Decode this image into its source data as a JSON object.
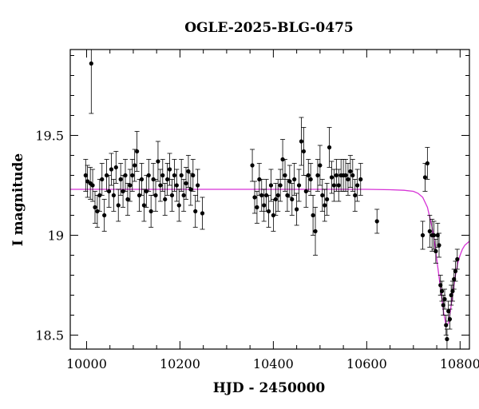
{
  "chart_data": {
    "type": "scatter",
    "title": "OGLE-2025-BLG-0475",
    "xlabel": "HJD - 2450000",
    "ylabel": "I magnitude",
    "xlim": [
      9965,
      10820
    ],
    "ylim": [
      19.93,
      18.43
    ],
    "y_inverted": true,
    "grid": false,
    "x_ticks": {
      "labeled": [
        10000,
        10200,
        10400,
        10600,
        10800
      ],
      "labels": [
        "10000",
        "10200",
        "10400",
        "10600",
        "10800"
      ]
    },
    "y_ticks": {
      "labeled": [
        18.5,
        19.0,
        19.5
      ],
      "labels": [
        "18.5",
        "19",
        "19.5"
      ]
    },
    "colors": {
      "points": "#000000",
      "model": "#d633d6"
    },
    "series": [
      {
        "style": "points with error bars",
        "x": [
          9998,
          10002,
          10008,
          10013,
          10018,
          10023,
          10028,
          10033,
          10038,
          10043,
          10048,
          10053,
          10058,
          10063,
          10068,
          10073,
          10078,
          10083,
          10088,
          10093,
          10098,
          10103,
          10108,
          10113,
          10118,
          10123,
          10128,
          10133,
          10138,
          10143,
          10148,
          10153,
          10158,
          10163,
          10168,
          10173,
          10178,
          10183,
          10188,
          10193,
          10198,
          10203,
          10208,
          10213,
          10218,
          10223,
          10228,
          10233,
          10238,
          10248,
          10010,
          10355,
          10360,
          10365,
          10370,
          10375,
          10380,
          10385,
          10390,
          10395,
          10400,
          10405,
          10410,
          10415,
          10420,
          10425,
          10430,
          10435,
          10440,
          10445,
          10450,
          10455,
          10460,
          10465,
          10470,
          10475,
          10480,
          10485,
          10490,
          10495,
          10500,
          10505,
          10510,
          10515,
          10520,
          10525,
          10530,
          10535,
          10540,
          10545,
          10550,
          10555,
          10560,
          10565,
          10570,
          10575,
          10580,
          10587,
          10622,
          10720,
          10725,
          10730,
          10735,
          10740,
          10744,
          10748,
          10752,
          10755,
          10758,
          10761,
          10764,
          10767,
          10770,
          10772,
          10775,
          10778,
          10781,
          10784,
          10787,
          10790,
          10794
        ],
        "y": [
          19.3,
          19.27,
          19.26,
          19.25,
          19.14,
          19.12,
          19.2,
          19.28,
          19.1,
          19.3,
          19.22,
          19.33,
          19.2,
          19.34,
          19.15,
          19.28,
          19.22,
          19.3,
          19.18,
          19.25,
          19.3,
          19.35,
          19.42,
          19.2,
          19.28,
          19.15,
          19.22,
          19.3,
          19.12,
          19.28,
          19.2,
          19.37,
          19.25,
          19.3,
          19.18,
          19.28,
          19.33,
          19.2,
          19.3,
          19.25,
          19.15,
          19.3,
          19.2,
          19.26,
          19.32,
          19.23,
          19.3,
          19.12,
          19.25,
          19.11,
          19.86,
          19.35,
          19.19,
          19.14,
          19.28,
          19.2,
          19.15,
          19.2,
          19.12,
          19.25,
          19.1,
          19.18,
          19.2,
          19.25,
          19.38,
          19.3,
          19.2,
          19.27,
          19.18,
          19.28,
          19.13,
          19.25,
          19.47,
          19.42,
          19.22,
          19.3,
          19.28,
          19.1,
          19.02,
          19.3,
          19.35,
          19.2,
          19.15,
          19.18,
          19.44,
          19.29,
          19.25,
          19.3,
          19.25,
          19.3,
          19.3,
          19.3,
          19.28,
          19.32,
          19.3,
          19.2,
          19.25,
          19.28,
          19.07,
          19.0,
          19.29,
          19.36,
          19.02,
          19.0,
          19.0,
          18.92,
          19.0,
          18.95,
          18.75,
          18.72,
          18.65,
          18.68,
          18.55,
          18.48,
          18.62,
          18.58,
          18.7,
          18.72,
          18.78,
          18.82,
          18.88
        ],
        "err": [
          0.08,
          0.08,
          0.08,
          0.08,
          0.08,
          0.08,
          0.08,
          0.08,
          0.08,
          0.08,
          0.08,
          0.08,
          0.08,
          0.08,
          0.08,
          0.08,
          0.08,
          0.08,
          0.08,
          0.08,
          0.08,
          0.08,
          0.1,
          0.08,
          0.08,
          0.08,
          0.08,
          0.08,
          0.08,
          0.08,
          0.08,
          0.1,
          0.08,
          0.08,
          0.08,
          0.08,
          0.08,
          0.08,
          0.08,
          0.08,
          0.08,
          0.08,
          0.08,
          0.08,
          0.08,
          0.08,
          0.08,
          0.08,
          0.08,
          0.08,
          0.25,
          0.08,
          0.08,
          0.08,
          0.08,
          0.08,
          0.08,
          0.08,
          0.08,
          0.08,
          0.08,
          0.08,
          0.08,
          0.08,
          0.1,
          0.08,
          0.08,
          0.08,
          0.08,
          0.08,
          0.08,
          0.08,
          0.12,
          0.12,
          0.08,
          0.08,
          0.08,
          0.1,
          0.12,
          0.08,
          0.1,
          0.08,
          0.08,
          0.08,
          0.1,
          0.08,
          0.08,
          0.08,
          0.08,
          0.08,
          0.08,
          0.08,
          0.08,
          0.08,
          0.08,
          0.08,
          0.08,
          0.08,
          0.06,
          0.07,
          0.07,
          0.08,
          0.08,
          0.08,
          0.07,
          0.06,
          0.06,
          0.06,
          0.05,
          0.05,
          0.05,
          0.05,
          0.05,
          0.05,
          0.05,
          0.05,
          0.05,
          0.05,
          0.05,
          0.05,
          0.05
        ]
      },
      {
        "style": "line",
        "x": [
          9965,
          10600,
          10650,
          10680,
          10700,
          10710,
          10720,
          10730,
          10740,
          10745,
          10750,
          10755,
          10760,
          10765,
          10770,
          10772,
          10775,
          10778,
          10781,
          10785,
          10790,
          10795,
          10800,
          10805,
          10810,
          10820
        ],
        "y": [
          19.23,
          19.23,
          19.228,
          19.225,
          19.22,
          19.21,
          19.19,
          19.14,
          19.04,
          18.97,
          18.88,
          18.79,
          18.7,
          18.61,
          18.55,
          18.55,
          18.56,
          18.6,
          18.65,
          18.72,
          18.8,
          18.86,
          18.9,
          18.93,
          18.95,
          18.97
        ]
      }
    ]
  }
}
